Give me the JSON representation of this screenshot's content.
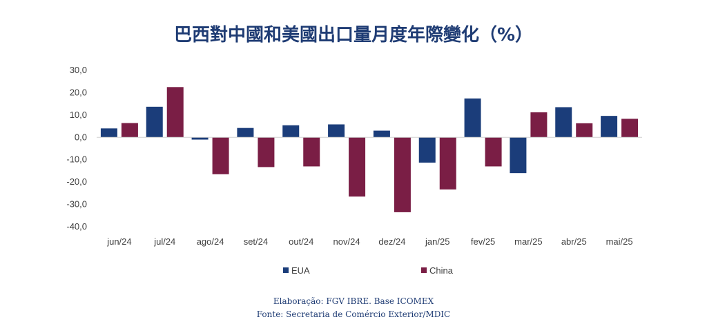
{
  "chart_data": {
    "type": "bar",
    "title": "巴西對中國和美國出口量月度年際變化（%）",
    "categories": [
      "jun/24",
      "jul/24",
      "ago/24",
      "set/24",
      "out/24",
      "nov/24",
      "dez/24",
      "jan/25",
      "fev/25",
      "mar/25",
      "abr/25",
      "mai/25"
    ],
    "series": [
      {
        "name": "EUA",
        "color": "#1b3d7a",
        "values": [
          4.0,
          13.7,
          -1.0,
          4.2,
          5.4,
          5.8,
          3.0,
          -11.3,
          17.4,
          -16.0,
          13.5,
          9.6
        ]
      },
      {
        "name": "China",
        "color": "#7a1e45",
        "values": [
          6.4,
          22.5,
          -16.5,
          -13.3,
          -13.0,
          -26.5,
          -33.5,
          -23.3,
          -13.0,
          11.2,
          6.3,
          8.3
        ]
      }
    ],
    "ylim": [
      -40,
      30
    ],
    "yticks": [
      "30,0",
      "20,0",
      "10,0",
      "0,0",
      "-10,0",
      "-20,0",
      "-30,0",
      "-40,0"
    ],
    "ytick_values": [
      30,
      20,
      10,
      0,
      -10,
      -20,
      -30,
      -40
    ],
    "legend_position": "bottom",
    "grid": false
  },
  "footer": {
    "line1": "Elaboração: FGV IBRE. Base ICOMEX",
    "line2": "Fonte: Secretaria de Comércio Exterior/MDIC"
  }
}
